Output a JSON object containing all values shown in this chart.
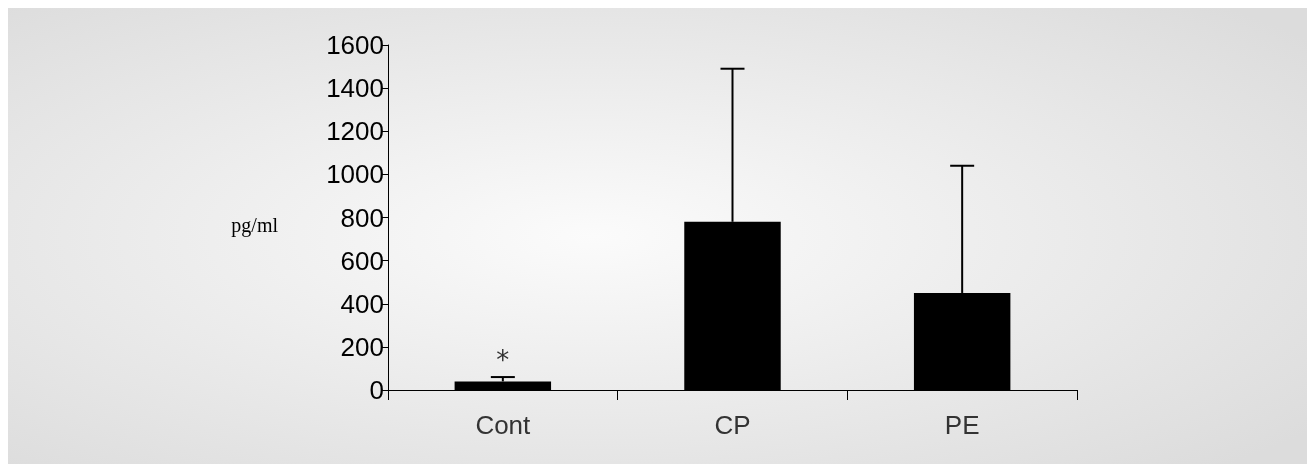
{
  "chart_data": {
    "type": "bar",
    "ylabel": "pg/ml",
    "categories": [
      "Cont",
      "CP",
      "PE"
    ],
    "values": [
      40,
      780,
      450
    ],
    "errors": [
      [
        40,
        60
      ],
      [
        780,
        1490
      ],
      [
        450,
        1040
      ]
    ],
    "color": "#000000",
    "ylim": [
      0,
      1600
    ],
    "yticks": [
      0,
      200,
      400,
      600,
      800,
      1000,
      1200,
      1400,
      1600
    ],
    "annotations": [
      "*"
    ],
    "grid": false
  }
}
